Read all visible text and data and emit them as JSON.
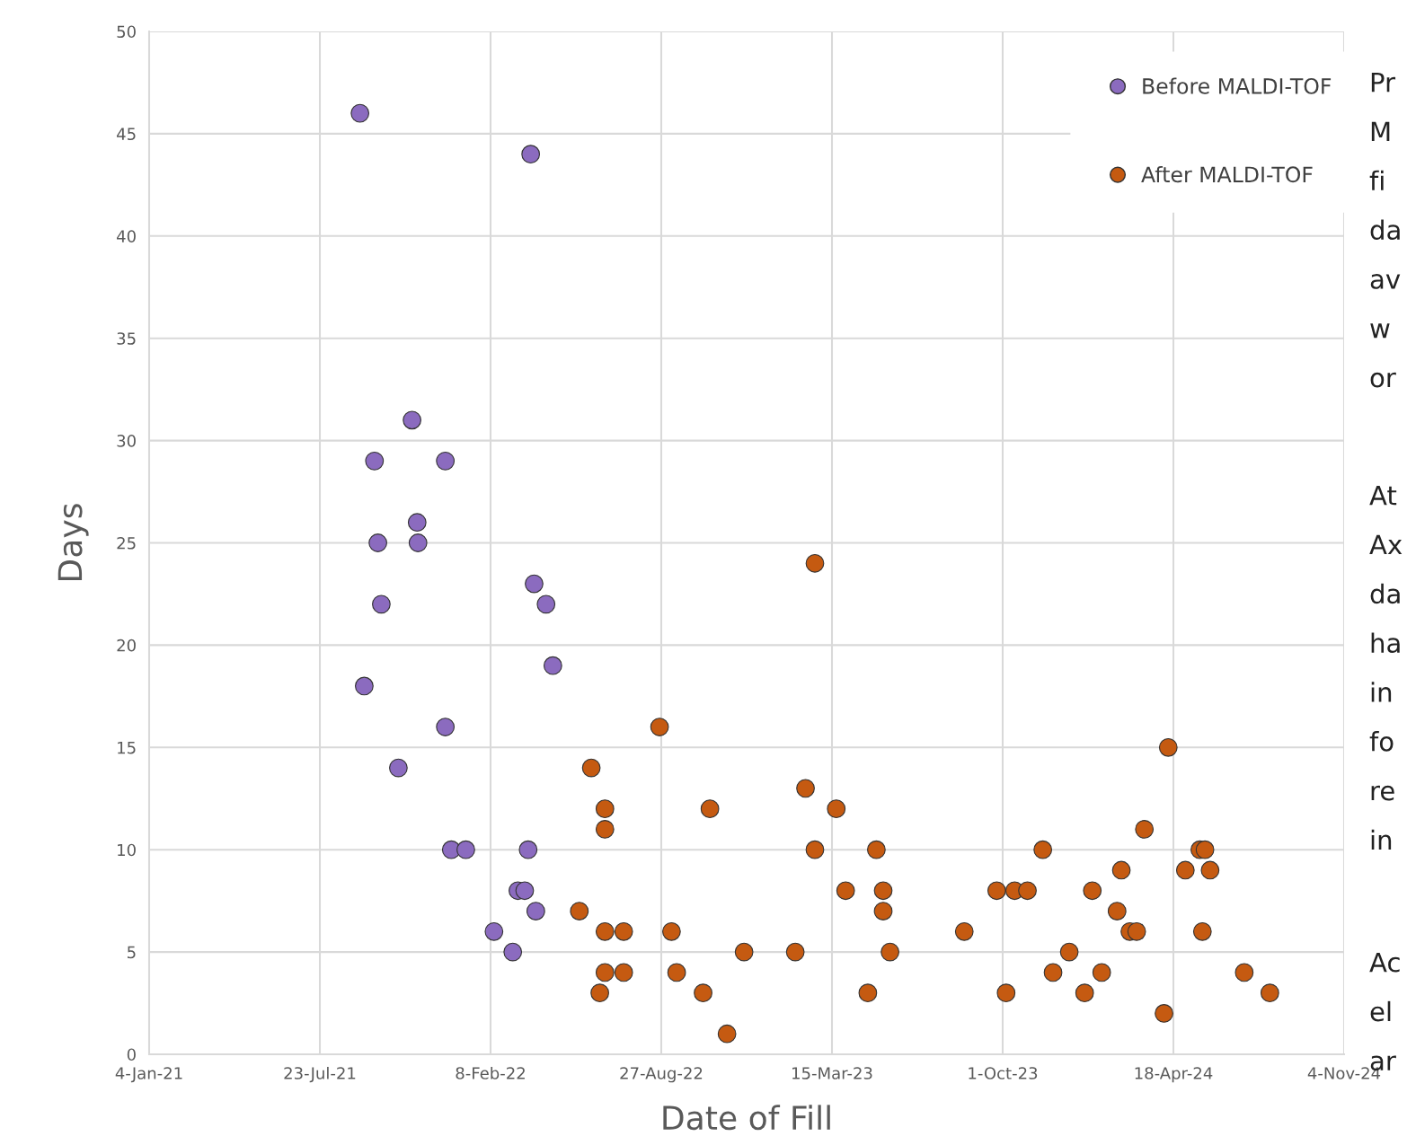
{
  "chart_data": {
    "type": "scatter",
    "xlabel": "Date of Fill",
    "ylabel": "Days",
    "xlim": [
      "2021-01-04",
      "2024-11-04"
    ],
    "xticks": [
      {
        "value": "2021-01-04",
        "label": "4-Jan-21"
      },
      {
        "value": "2021-07-23",
        "label": "23-Jul-21"
      },
      {
        "value": "2022-02-08",
        "label": "8-Feb-22"
      },
      {
        "value": "2022-08-27",
        "label": "27-Aug-22"
      },
      {
        "value": "2023-03-15",
        "label": "15-Mar-23"
      },
      {
        "value": "2023-10-01",
        "label": "1-Oct-23"
      },
      {
        "value": "2024-04-18",
        "label": "18-Apr-24"
      },
      {
        "value": "2024-11-04",
        "label": "4-Nov-24"
      }
    ],
    "ylim": [
      0,
      50
    ],
    "yticks": [
      0,
      5,
      10,
      15,
      20,
      25,
      30,
      35,
      40,
      45,
      50
    ],
    "grid": true,
    "legend": "top right",
    "marker": "circle",
    "series": [
      {
        "name": "Before MALDI-TOF",
        "color": "#8b6bbf",
        "x": [
          "2021-09-08",
          "2021-09-25",
          "2021-09-29",
          "2021-10-03",
          "2021-09-13",
          "2021-10-23",
          "2021-11-08",
          "2021-11-14",
          "2021-11-15",
          "2021-12-17",
          "2021-12-17",
          "2021-12-24",
          "2022-01-10",
          "2022-03-27",
          "2022-03-31",
          "2022-04-14",
          "2022-04-22",
          "2022-03-24",
          "2022-03-12",
          "2022-03-20",
          "2022-04-02",
          "2022-02-12",
          "2022-03-06"
        ],
        "values": [
          46,
          29,
          25,
          22,
          18,
          14,
          31,
          26,
          25,
          29,
          16,
          10,
          10,
          44,
          23,
          22,
          19,
          10,
          8,
          8,
          7,
          6,
          5
        ]
      },
      {
        "name": "After MALDI-TOF",
        "color": "#c55a11",
        "x": [
          "2022-05-23",
          "2022-06-06",
          "2022-06-16",
          "2022-06-22",
          "2022-06-22",
          "2022-06-22",
          "2022-06-22",
          "2022-07-14",
          "2022-07-14",
          "2022-08-25",
          "2022-09-08",
          "2022-09-14",
          "2022-10-15",
          "2022-10-23",
          "2022-11-12",
          "2022-12-02",
          "2023-01-31",
          "2023-02-12",
          "2023-02-23",
          "2023-02-23",
          "2023-03-20",
          "2023-03-31",
          "2023-04-26",
          "2023-05-06",
          "2023-05-14",
          "2023-05-14",
          "2023-05-22",
          "2023-08-17",
          "2023-09-24",
          "2023-10-05",
          "2023-10-15",
          "2023-10-30",
          "2023-11-17",
          "2023-11-29",
          "2023-12-18",
          "2024-01-05",
          "2024-01-14",
          "2024-01-25",
          "2024-02-12",
          "2024-02-17",
          "2024-02-27",
          "2024-03-06",
          "2024-03-15",
          "2024-04-07",
          "2024-04-12",
          "2024-05-02",
          "2024-05-19",
          "2024-05-22",
          "2024-05-25",
          "2024-05-31",
          "2024-07-10",
          "2024-08-09"
        ],
        "values": [
          7,
          14,
          3,
          12,
          11,
          6,
          4,
          6,
          4,
          16,
          6,
          4,
          3,
          12,
          1,
          5,
          5,
          13,
          24,
          10,
          12,
          8,
          3,
          10,
          8,
          7,
          5,
          6,
          8,
          3,
          8,
          8,
          10,
          4,
          5,
          3,
          8,
          4,
          7,
          9,
          6,
          6,
          11,
          2,
          15,
          9,
          10,
          6,
          10,
          9,
          4,
          3
        ]
      }
    ],
    "annotations": [
      "Pr\nM\nfi\nda\nav\nw\nor",
      "At\nAx\nda\nha\nin\nfo\nre\nin",
      "Ac\nel\nar"
    ]
  }
}
